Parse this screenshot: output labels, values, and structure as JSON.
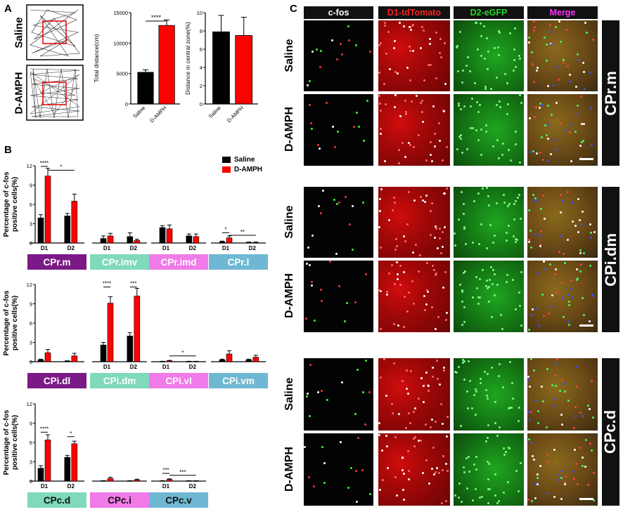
{
  "panel_letters": {
    "a": "A",
    "b": "B",
    "c": "C"
  },
  "panel_a": {
    "track_labels": [
      "Saline",
      "D-AMPH"
    ],
    "chart_data": [
      {
        "type": "bar",
        "categories": [
          "Saline",
          "D-AMPH"
        ],
        "values": [
          5200,
          12900
        ],
        "errors": [
          400,
          900
        ],
        "ylabel": "Total distance(cm)",
        "ylim": [
          0,
          15000
        ],
        "yticks": [
          "0",
          "5000",
          "10000",
          "15000"
        ],
        "colors": [
          "#000000",
          "#ff0000"
        ],
        "significance": "****"
      },
      {
        "type": "bar",
        "categories": [
          "Saline",
          "D-AMPH"
        ],
        "values": [
          7.9,
          7.5
        ],
        "errors": [
          1.8,
          2.0
        ],
        "ylabel": "Distance in central zone(%)",
        "ylim": [
          0,
          10
        ],
        "yticks": [
          "0",
          "2",
          "4",
          "6",
          "8",
          "10"
        ],
        "colors": [
          "#000000",
          "#ff0000"
        ]
      }
    ]
  },
  "panel_b": {
    "legend": [
      {
        "label": "Saline",
        "color": "#000000"
      },
      {
        "label": "D-AMPH",
        "color": "#ff0000"
      }
    ],
    "chart_data": [
      {
        "type": "bar",
        "ylabel": "Percentage of c-fos positive cells(%)",
        "ylim": [
          0,
          12
        ],
        "yticks": [
          "0",
          "3",
          "6",
          "9",
          "12"
        ],
        "groups": [
          {
            "name": "CPr.m",
            "tag_color": "#7b1a86",
            "tag_text": "#ffffff",
            "cats": [
              "D1",
              "D2"
            ],
            "show_cat_labels": true,
            "saline": [
              3.9,
              4.2
            ],
            "saline_err": [
              0.5,
              0.4
            ],
            "amph": [
              10.4,
              6.5
            ],
            "amph_err": [
              1.2,
              1.1
            ]
          },
          {
            "name": "CPr.imv",
            "tag_color": "#7fd9bb",
            "tag_text": "#ffffff",
            "cats": [
              "D1",
              "D2"
            ],
            "show_cat_labels": true,
            "saline": [
              0.7,
              1.0
            ],
            "saline_err": [
              0.4,
              0.6
            ],
            "amph": [
              1.1,
              0.4
            ],
            "amph_err": [
              0.4,
              0.2
            ]
          },
          {
            "name": "CPr.imd",
            "tag_color": "#f07ae8",
            "tag_text": "#ffffff",
            "cats": [
              "D1",
              "D2"
            ],
            "show_cat_labels": true,
            "saline": [
              2.4,
              1.1
            ],
            "saline_err": [
              0.3,
              0.3
            ],
            "amph": [
              2.2,
              1.0
            ],
            "amph_err": [
              0.6,
              0.4
            ]
          },
          {
            "name": "CPr.l",
            "tag_color": "#6fb8d3",
            "tag_text": "#ffffff",
            "cats": [
              "D1",
              "D2"
            ],
            "show_cat_labels": true,
            "saline": [
              0.2,
              0.1
            ],
            "saline_err": [
              0.1,
              0.05
            ],
            "amph": [
              0.8,
              0.1
            ],
            "amph_err": [
              0.3,
              0.05
            ]
          }
        ],
        "significance": [
          {
            "text": "****",
            "group": 0,
            "from": "s0",
            "to": "a0",
            "y": 11.9
          },
          {
            "text": "*",
            "group": 0,
            "from": "a0",
            "to": "a1",
            "y": 11.3
          },
          {
            "text": "*",
            "group": 3,
            "from": "s0",
            "to": "a0",
            "y": 1.6
          },
          {
            "text": "**",
            "group": 3,
            "from": "a0",
            "to": "a1",
            "y": 1.2
          }
        ]
      },
      {
        "type": "bar",
        "ylabel": "Percentage of c-fos positive cells(%)",
        "ylim": [
          0,
          12
        ],
        "yticks": [
          "0",
          "3",
          "6",
          "9",
          "12"
        ],
        "groups": [
          {
            "name": "CPi.dl",
            "tag_color": "#7b1a86",
            "tag_text": "#ffffff",
            "cats": [
              "D1",
              "D2"
            ],
            "show_cat_labels": false,
            "saline": [
              0.3,
              0.1
            ],
            "saline_err": [
              0.1,
              0.05
            ],
            "amph": [
              1.4,
              0.9
            ],
            "amph_err": [
              0.5,
              0.4
            ]
          },
          {
            "name": "CPi.dm",
            "tag_color": "#7fd9bb",
            "tag_text": "#ffffff",
            "cats": [
              "D1",
              "D2"
            ],
            "show_cat_labels": true,
            "saline": [
              2.6,
              4.0
            ],
            "saline_err": [
              0.4,
              0.5
            ],
            "amph": [
              9.1,
              10.2
            ],
            "amph_err": [
              1.0,
              1.2
            ]
          },
          {
            "name": "CPi.vl",
            "tag_color": "#f07ae8",
            "tag_text": "#ffffff",
            "cats": [
              "D1",
              "D2"
            ],
            "show_cat_labels": true,
            "saline": [
              0.05,
              0.05
            ],
            "saline_err": [
              0.02,
              0.02
            ],
            "amph": [
              0.15,
              0.05
            ],
            "amph_err": [
              0.05,
              0.02
            ]
          },
          {
            "name": "CPi.vm",
            "tag_color": "#6fb8d3",
            "tag_text": "#ffffff",
            "cats": [
              "D1",
              "D2"
            ],
            "show_cat_labels": false,
            "saline": [
              0.3,
              0.3
            ],
            "saline_err": [
              0.1,
              0.1
            ],
            "amph": [
              1.2,
              0.7
            ],
            "amph_err": [
              0.5,
              0.3
            ]
          }
        ],
        "significance": [
          {
            "text": "****",
            "group": 1,
            "from": "s0",
            "to": "a0",
            "y": 11.6
          },
          {
            "text": "***",
            "group": 1,
            "from": "s1",
            "to": "a1",
            "y": 11.6
          },
          {
            "text": "*",
            "group": 2,
            "from": "a0",
            "to": "a1",
            "y": 0.9
          }
        ]
      },
      {
        "type": "bar",
        "ylabel": "Percentage of c-fos positive cells(%)",
        "ylim": [
          0,
          12
        ],
        "yticks": [
          "0",
          "3",
          "6",
          "9",
          "12"
        ],
        "groups": [
          {
            "name": "CPc.d",
            "tag_color": "#7fd9bb",
            "tag_text": "#111111",
            "cats": [
              "D1",
              "D2"
            ],
            "show_cat_labels": true,
            "saline": [
              2.0,
              3.7
            ],
            "saline_err": [
              0.4,
              0.3
            ],
            "amph": [
              6.4,
              5.8
            ],
            "amph_err": [
              0.8,
              0.4
            ]
          },
          {
            "name": "CPc.i",
            "tag_color": "#f07ae8",
            "tag_text": "#111111",
            "cats": [
              "D1",
              "D2"
            ],
            "show_cat_labels": false,
            "saline": [
              0.05,
              0.05
            ],
            "saline_err": [
              0.02,
              0.02
            ],
            "amph": [
              0.4,
              0.2
            ],
            "amph_err": [
              0.2,
              0.1
            ]
          },
          {
            "name": "CPc.v",
            "tag_color": "#6fb8d3",
            "tag_text": "#111111",
            "cats": [
              "D1",
              "D2"
            ],
            "show_cat_labels": true,
            "saline": [
              0.05,
              0.05
            ],
            "saline_err": [
              0.02,
              0.02
            ],
            "amph": [
              0.25,
              0.05
            ],
            "amph_err": [
              0.1,
              0.02
            ]
          }
        ],
        "significance": [
          {
            "text": "****",
            "group": 0,
            "from": "s0",
            "to": "a0",
            "y": 7.6
          },
          {
            "text": "*",
            "group": 0,
            "from": "s1",
            "to": "a1",
            "y": 6.9
          },
          {
            "text": "***",
            "group": 2,
            "from": "s0",
            "to": "a0",
            "y": 1.2
          },
          {
            "text": "***",
            "group": 2,
            "from": "a0",
            "to": "a1",
            "y": 0.9
          }
        ]
      }
    ]
  },
  "panel_c": {
    "column_headers": [
      {
        "label": "c-fos",
        "color": "#ffffff"
      },
      {
        "label": "D1-tdTomato",
        "color": "#ff2020"
      },
      {
        "label": "D2-eGFP",
        "color": "#22dd22"
      },
      {
        "label": "Merge",
        "color": "#ff33ff"
      }
    ],
    "row_labels": [
      "Saline",
      "D-AMPH"
    ],
    "regions": [
      "CPr.m",
      "CPi.dm",
      "CPc.d"
    ]
  }
}
